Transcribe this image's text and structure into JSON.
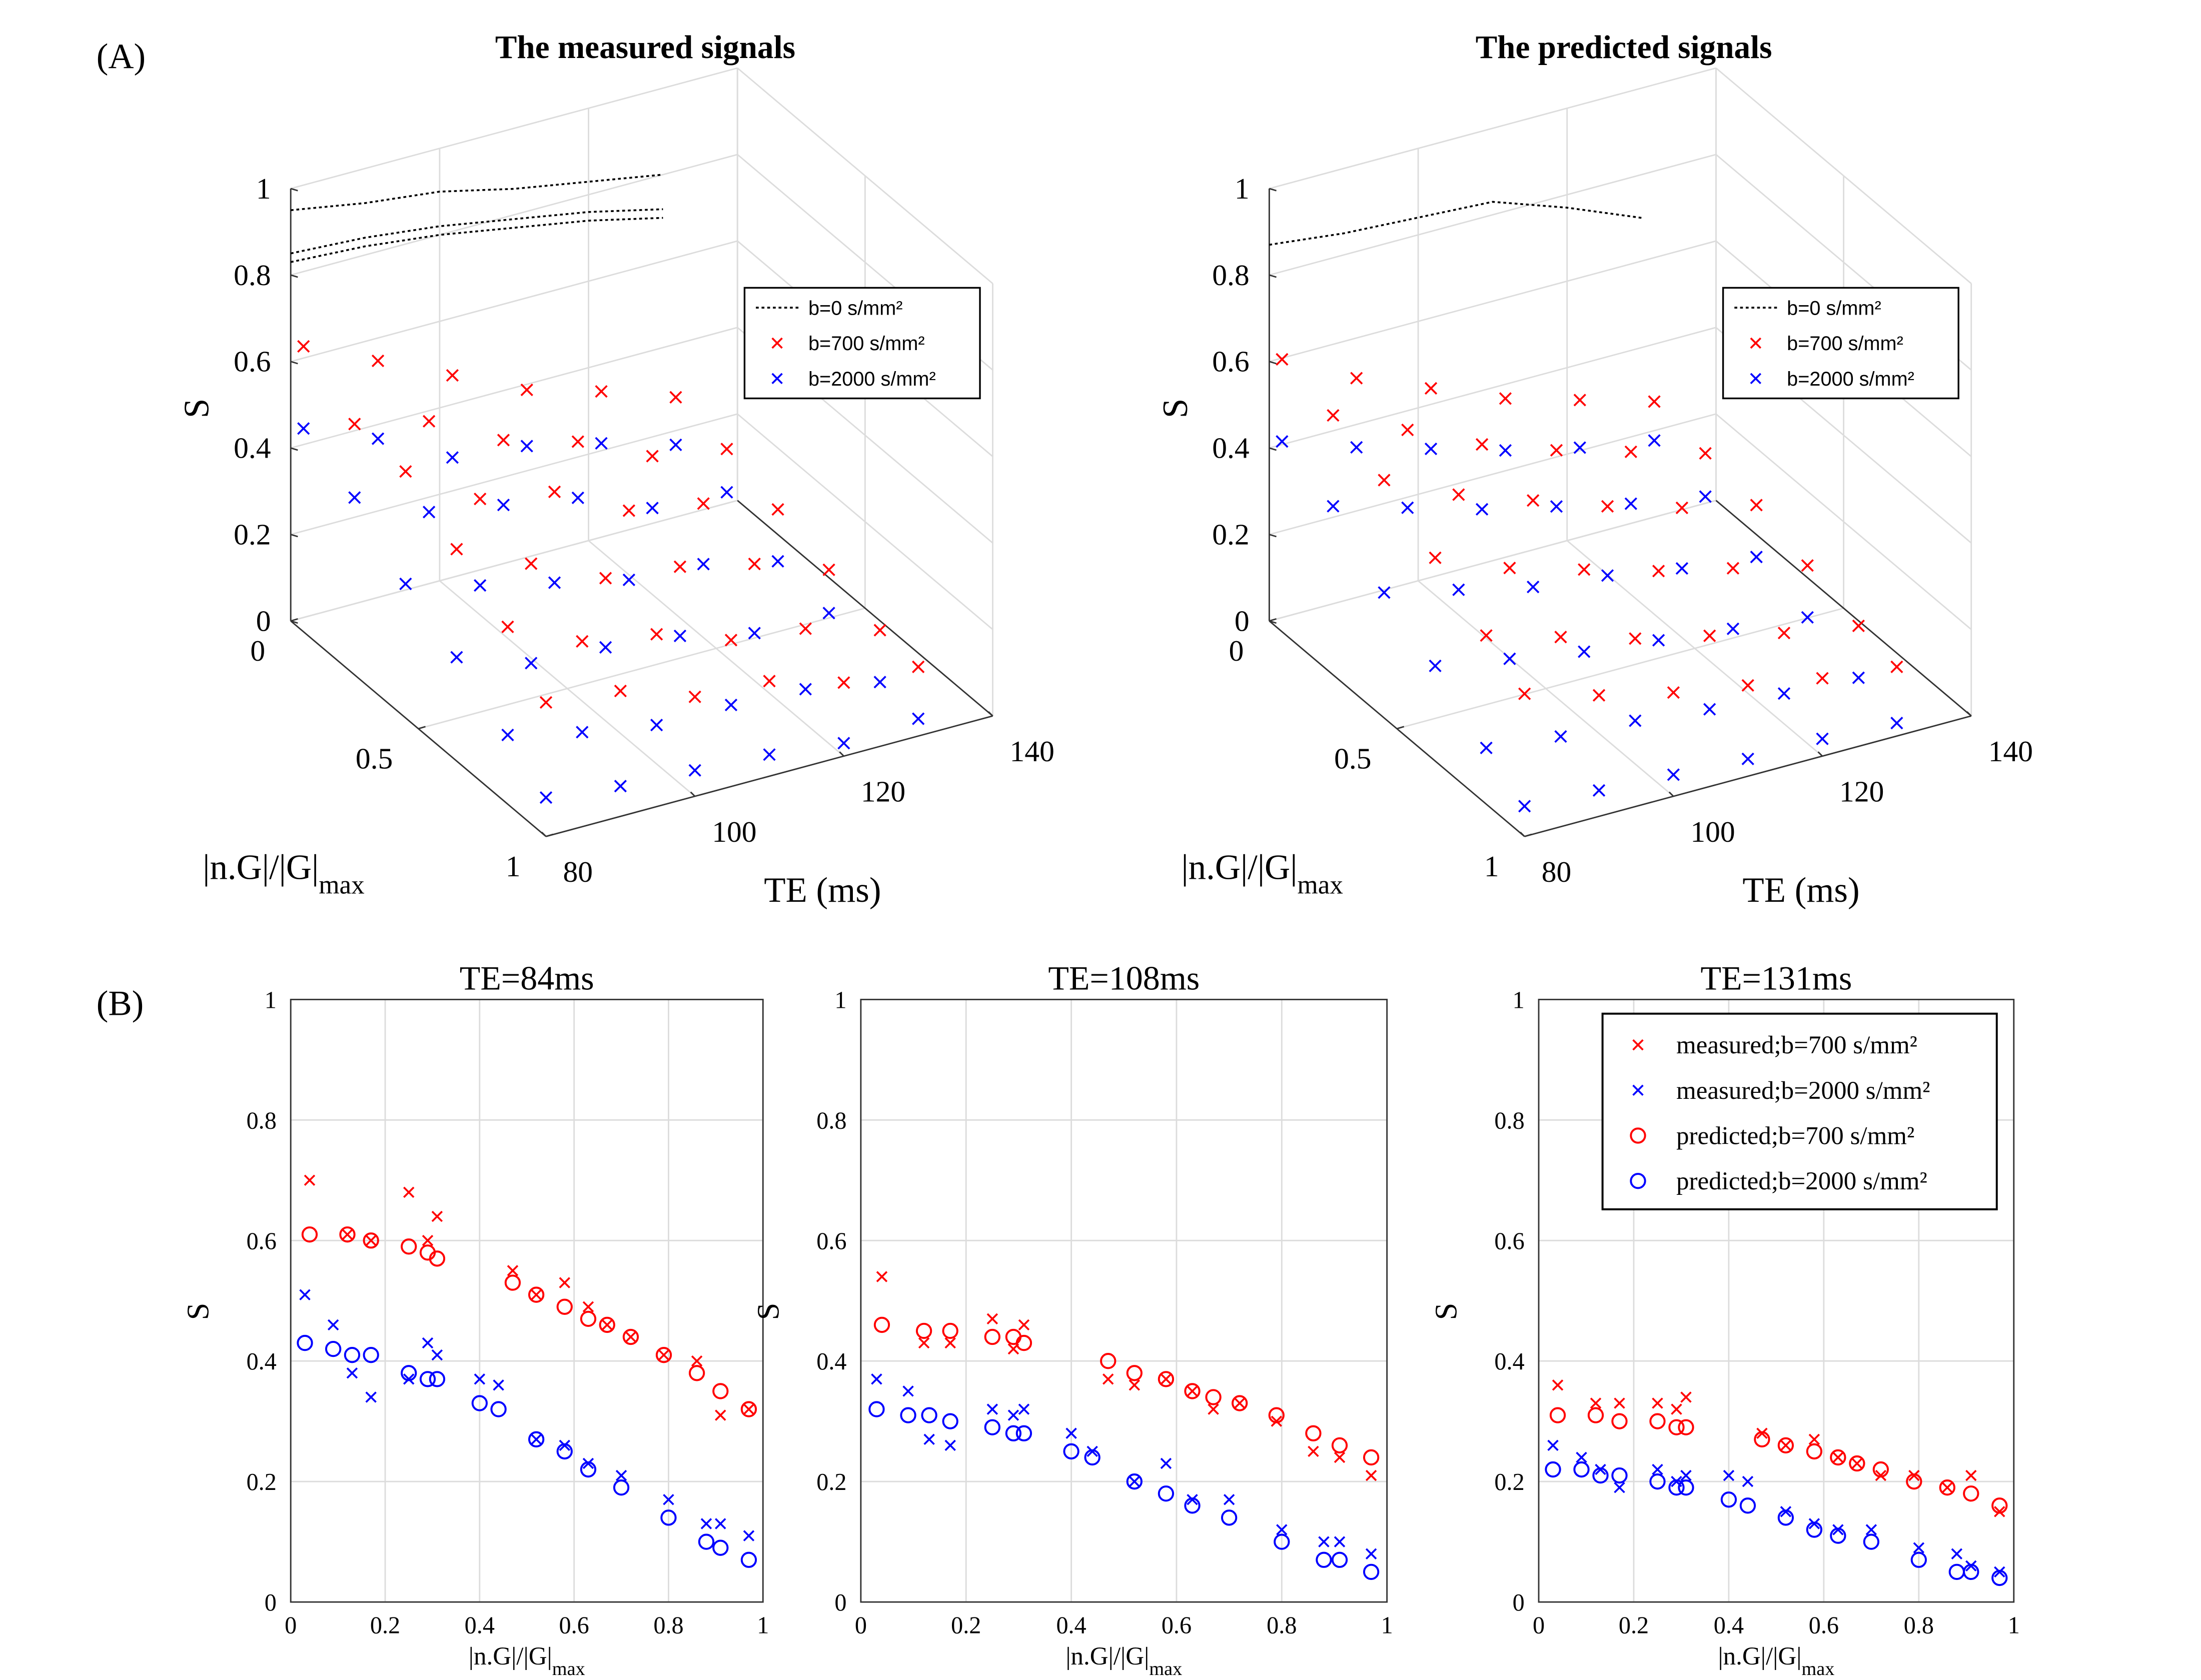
{
  "panel_labels": [
    "(A)",
    "(B)"
  ],
  "chart_data": [
    {
      "type": "scatter3d",
      "title": "The measured signals",
      "xlabel": "TE (ms)",
      "ylabel": "|n.G|/|G|",
      "ylabel_sub": "max",
      "zlabel": "S",
      "xlim": [
        80,
        140
      ],
      "ylim": [
        0,
        1
      ],
      "zlim": [
        0,
        1
      ],
      "xticks": [
        80,
        100,
        120,
        140
      ],
      "yticks": [
        0,
        0.5,
        1
      ],
      "zticks": [
        0,
        0.2,
        0.4,
        0.6,
        0.8,
        1
      ],
      "grid": true,
      "legend": "upper right",
      "x": [
        80,
        90,
        100,
        110,
        120,
        130
      ],
      "series": [
        {
          "name": "b=0 s/mm²",
          "color": "#000000",
          "marker": "line",
          "gradients": [
            0,
            0,
            0
          ],
          "values": [
            [
              0.95,
              0.92,
              0.9,
              0.86,
              0.83,
              0.8
            ],
            [
              0.85,
              0.84,
              0.82,
              0.79,
              0.76,
              0.72
            ],
            [
              0.83,
              0.82,
              0.8,
              0.77,
              0.74,
              0.7
            ]
          ]
        },
        {
          "name": "b=700 s/mm²",
          "color": "#ff0000",
          "marker": "x",
          "gradients": [
            0.05,
            0.25,
            0.45,
            0.65,
            0.85,
            1.0
          ],
          "values": [
            [
              0.66,
              0.58,
              0.5,
              0.42,
              0.37,
              0.31
            ],
            [
              0.58,
              0.54,
              0.45,
              0.4,
              0.32,
              0.29
            ],
            [
              0.57,
              0.46,
              0.43,
              0.34,
              0.31,
              0.25
            ],
            [
              0.49,
              0.41,
              0.33,
              0.31,
              0.27,
              0.21
            ],
            [
              0.41,
              0.33,
              0.3,
              0.24,
              0.22,
              0.17
            ],
            [
              0.31,
              0.29,
              0.23,
              0.22,
              0.17,
              0.16
            ]
          ]
        },
        {
          "name": "b=2000 s/mm²",
          "color": "#0000ff",
          "marker": "x",
          "gradients": [
            0.05,
            0.25,
            0.45,
            0.65,
            0.85,
            1.0
          ],
          "values": [
            [
              0.47,
              0.4,
              0.31,
              0.29,
              0.25,
              0.2
            ],
            [
              0.41,
              0.33,
              0.3,
              0.27,
              0.2,
              0.19
            ],
            [
              0.31,
              0.26,
              0.22,
              0.18,
              0.17,
              0.13
            ],
            [
              0.24,
              0.18,
              0.17,
              0.15,
              0.11,
              0.11
            ],
            [
              0.16,
              0.12,
              0.09,
              0.09,
              0.08,
              0.05
            ],
            [
              0.09,
              0.07,
              0.06,
              0.05,
              0.03,
              0.04
            ]
          ]
        }
      ]
    },
    {
      "type": "scatter3d",
      "title": "The predicted signals",
      "xlabel": "TE (ms)",
      "ylabel": "|n.G|/|G|",
      "ylabel_sub": "max",
      "zlabel": "S",
      "xlim": [
        80,
        140
      ],
      "ylim": [
        0,
        1
      ],
      "zlim": [
        0,
        1
      ],
      "xticks": [
        80,
        100,
        120,
        140
      ],
      "yticks": [
        0,
        0.5,
        1
      ],
      "zticks": [
        0,
        0.2,
        0.4,
        0.6,
        0.8,
        1
      ],
      "grid": true,
      "legend": "upper right",
      "x": [
        80,
        90,
        100,
        110,
        120,
        130
      ],
      "series": [
        {
          "name": "b=0 s/mm²",
          "color": "#000000",
          "marker": "line",
          "gradients": [
            0
          ],
          "values": [
            [
              0.87,
              0.85,
              0.84,
              0.83,
              0.77,
              0.7
            ]
          ]
        },
        {
          "name": "b=700 s/mm²",
          "color": "#ff0000",
          "marker": "x",
          "gradients": [
            0.05,
            0.25,
            0.45,
            0.65,
            0.85,
            1.0
          ],
          "values": [
            [
              0.63,
              0.54,
              0.47,
              0.4,
              0.35,
              0.3
            ],
            [
              0.6,
              0.52,
              0.44,
              0.38,
              0.33,
              0.28
            ],
            [
              0.55,
              0.47,
              0.41,
              0.35,
              0.3,
              0.26
            ],
            [
              0.47,
              0.4,
              0.35,
              0.3,
              0.26,
              0.22
            ],
            [
              0.39,
              0.34,
              0.29,
              0.25,
              0.21,
              0.18
            ],
            [
              0.33,
              0.28,
              0.24,
              0.21,
              0.18,
              0.16
            ]
          ]
        },
        {
          "name": "b=2000 s/mm²",
          "color": "#0000ff",
          "marker": "x",
          "gradients": [
            0.05,
            0.25,
            0.45,
            0.65,
            0.85,
            1.0
          ],
          "values": [
            [
              0.44,
              0.38,
              0.33,
              0.28,
              0.24,
              0.21
            ],
            [
              0.39,
              0.34,
              0.29,
              0.25,
              0.21,
              0.18
            ],
            [
              0.29,
              0.25,
              0.21,
              0.19,
              0.16,
              0.14
            ],
            [
              0.22,
              0.19,
              0.16,
              0.14,
              0.12,
              0.1
            ],
            [
              0.13,
              0.11,
              0.1,
              0.08,
              0.07,
              0.06
            ],
            [
              0.07,
              0.06,
              0.05,
              0.04,
              0.04,
              0.03
            ]
          ]
        }
      ]
    },
    {
      "type": "scatter",
      "title": "TE=84ms",
      "xlabel": "|n.G|/|G|",
      "xlabel_sub": "max",
      "ylabel": "S",
      "xlim": [
        0,
        1
      ],
      "ylim": [
        0,
        1
      ],
      "xticks": [
        0,
        0.2,
        0.4,
        0.6,
        0.8,
        1
      ],
      "yticks": [
        0,
        0.2,
        0.4,
        0.6,
        0.8,
        1
      ],
      "grid": true,
      "series": [
        {
          "color": "#ff0000",
          "marker": "x",
          "x": [
            0.04,
            0.12,
            0.17,
            0.25,
            0.29,
            0.31,
            0.47,
            0.52,
            0.58,
            0.63,
            0.67,
            0.72,
            0.79,
            0.86,
            0.91,
            0.97
          ],
          "values": [
            0.7,
            0.61,
            0.6,
            0.68,
            0.6,
            0.64,
            0.55,
            0.51,
            0.53,
            0.49,
            0.46,
            0.44,
            0.41,
            0.4,
            0.31,
            0.32
          ]
        },
        {
          "color": "#0000ff",
          "marker": "x",
          "x": [
            0.03,
            0.09,
            0.13,
            0.17,
            0.25,
            0.29,
            0.31,
            0.4,
            0.44,
            0.52,
            0.58,
            0.63,
            0.7,
            0.8,
            0.88,
            0.91,
            0.97
          ],
          "values": [
            0.51,
            0.46,
            0.38,
            0.34,
            0.37,
            0.43,
            0.41,
            0.37,
            0.36,
            0.27,
            0.26,
            0.23,
            0.21,
            0.17,
            0.13,
            0.13,
            0.11
          ]
        },
        {
          "color": "#ff0000",
          "marker": "o",
          "x": [
            0.04,
            0.12,
            0.17,
            0.25,
            0.29,
            0.31,
            0.47,
            0.52,
            0.58,
            0.63,
            0.67,
            0.72,
            0.79,
            0.86,
            0.91,
            0.97
          ],
          "values": [
            0.61,
            0.61,
            0.6,
            0.59,
            0.58,
            0.57,
            0.53,
            0.51,
            0.49,
            0.47,
            0.46,
            0.44,
            0.41,
            0.38,
            0.35,
            0.32
          ]
        },
        {
          "color": "#0000ff",
          "marker": "o",
          "x": [
            0.03,
            0.09,
            0.13,
            0.17,
            0.25,
            0.29,
            0.31,
            0.4,
            0.44,
            0.52,
            0.58,
            0.63,
            0.7,
            0.8,
            0.88,
            0.91,
            0.97
          ],
          "values": [
            0.43,
            0.42,
            0.41,
            0.41,
            0.38,
            0.37,
            0.37,
            0.33,
            0.32,
            0.27,
            0.25,
            0.22,
            0.19,
            0.14,
            0.1,
            0.09,
            0.07
          ]
        }
      ]
    },
    {
      "type": "scatter",
      "title": "TE=108ms",
      "xlabel": "|n.G|/|G|",
      "xlabel_sub": "max",
      "ylabel": "S",
      "xlim": [
        0,
        1
      ],
      "ylim": [
        0,
        1
      ],
      "xticks": [
        0,
        0.2,
        0.4,
        0.6,
        0.8,
        1
      ],
      "yticks": [
        0,
        0.2,
        0.4,
        0.6,
        0.8,
        1
      ],
      "grid": true,
      "series": [
        {
          "color": "#ff0000",
          "marker": "x",
          "x": [
            0.04,
            0.12,
            0.17,
            0.25,
            0.29,
            0.31,
            0.47,
            0.52,
            0.58,
            0.63,
            0.67,
            0.72,
            0.79,
            0.86,
            0.91,
            0.97
          ],
          "values": [
            0.54,
            0.43,
            0.43,
            0.47,
            0.42,
            0.46,
            0.37,
            0.36,
            0.37,
            0.35,
            0.32,
            0.33,
            0.3,
            0.25,
            0.24,
            0.21
          ]
        },
        {
          "color": "#0000ff",
          "marker": "x",
          "x": [
            0.03,
            0.09,
            0.13,
            0.17,
            0.25,
            0.29,
            0.31,
            0.4,
            0.44,
            0.52,
            0.58,
            0.63,
            0.7,
            0.8,
            0.88,
            0.91,
            0.97
          ],
          "values": [
            0.37,
            0.35,
            0.27,
            0.26,
            0.32,
            0.31,
            0.32,
            0.28,
            0.25,
            0.2,
            0.23,
            0.17,
            0.17,
            0.12,
            0.1,
            0.1,
            0.08
          ]
        },
        {
          "color": "#ff0000",
          "marker": "o",
          "x": [
            0.04,
            0.12,
            0.17,
            0.25,
            0.29,
            0.31,
            0.47,
            0.52,
            0.58,
            0.63,
            0.67,
            0.72,
            0.79,
            0.86,
            0.91,
            0.97
          ],
          "values": [
            0.46,
            0.45,
            0.45,
            0.44,
            0.44,
            0.43,
            0.4,
            0.38,
            0.37,
            0.35,
            0.34,
            0.33,
            0.31,
            0.28,
            0.26,
            0.24
          ]
        },
        {
          "color": "#0000ff",
          "marker": "o",
          "x": [
            0.03,
            0.09,
            0.13,
            0.17,
            0.25,
            0.29,
            0.31,
            0.4,
            0.44,
            0.52,
            0.58,
            0.63,
            0.7,
            0.8,
            0.88,
            0.91,
            0.97
          ],
          "values": [
            0.32,
            0.31,
            0.31,
            0.3,
            0.29,
            0.28,
            0.28,
            0.25,
            0.24,
            0.2,
            0.18,
            0.16,
            0.14,
            0.1,
            0.07,
            0.07,
            0.05
          ]
        }
      ]
    },
    {
      "type": "scatter",
      "title": "TE=131ms",
      "xlabel": "|n.G|/|G|",
      "xlabel_sub": "max",
      "ylabel": "S",
      "xlim": [
        0,
        1
      ],
      "ylim": [
        0,
        1
      ],
      "xticks": [
        0,
        0.2,
        0.4,
        0.6,
        0.8,
        1
      ],
      "yticks": [
        0,
        0.2,
        0.4,
        0.6,
        0.8,
        1
      ],
      "grid": true,
      "legend": "upper right",
      "series": [
        {
          "name": "measured;b=700 s/mm²",
          "color": "#ff0000",
          "marker": "x",
          "x": [
            0.04,
            0.12,
            0.17,
            0.25,
            0.29,
            0.31,
            0.47,
            0.52,
            0.58,
            0.63,
            0.67,
            0.72,
            0.79,
            0.86,
            0.91,
            0.97
          ],
          "values": [
            0.36,
            0.33,
            0.33,
            0.33,
            0.32,
            0.34,
            0.28,
            0.26,
            0.27,
            0.24,
            0.23,
            0.21,
            0.21,
            0.19,
            0.21,
            0.15
          ]
        },
        {
          "name": "measured;b=2000 s/mm²",
          "color": "#0000ff",
          "marker": "x",
          "x": [
            0.03,
            0.09,
            0.13,
            0.17,
            0.25,
            0.29,
            0.31,
            0.4,
            0.44,
            0.52,
            0.58,
            0.63,
            0.7,
            0.8,
            0.88,
            0.91,
            0.97
          ],
          "values": [
            0.26,
            0.24,
            0.22,
            0.19,
            0.22,
            0.2,
            0.21,
            0.21,
            0.2,
            0.15,
            0.13,
            0.12,
            0.12,
            0.09,
            0.08,
            0.06,
            0.05
          ]
        },
        {
          "name": "predicted;b=700 s/mm²",
          "color": "#ff0000",
          "marker": "o",
          "x": [
            0.04,
            0.12,
            0.17,
            0.25,
            0.29,
            0.31,
            0.47,
            0.52,
            0.58,
            0.63,
            0.67,
            0.72,
            0.79,
            0.86,
            0.91,
            0.97
          ],
          "values": [
            0.31,
            0.31,
            0.3,
            0.3,
            0.29,
            0.29,
            0.27,
            0.26,
            0.25,
            0.24,
            0.23,
            0.22,
            0.2,
            0.19,
            0.18,
            0.16
          ]
        },
        {
          "name": "predicted;b=2000 s/mm²",
          "color": "#0000ff",
          "marker": "o",
          "x": [
            0.03,
            0.09,
            0.13,
            0.17,
            0.25,
            0.29,
            0.31,
            0.4,
            0.44,
            0.52,
            0.58,
            0.63,
            0.7,
            0.8,
            0.88,
            0.91,
            0.97
          ],
          "values": [
            0.22,
            0.22,
            0.21,
            0.21,
            0.2,
            0.19,
            0.19,
            0.17,
            0.16,
            0.14,
            0.12,
            0.11,
            0.1,
            0.07,
            0.05,
            0.05,
            0.04
          ]
        }
      ]
    }
  ]
}
